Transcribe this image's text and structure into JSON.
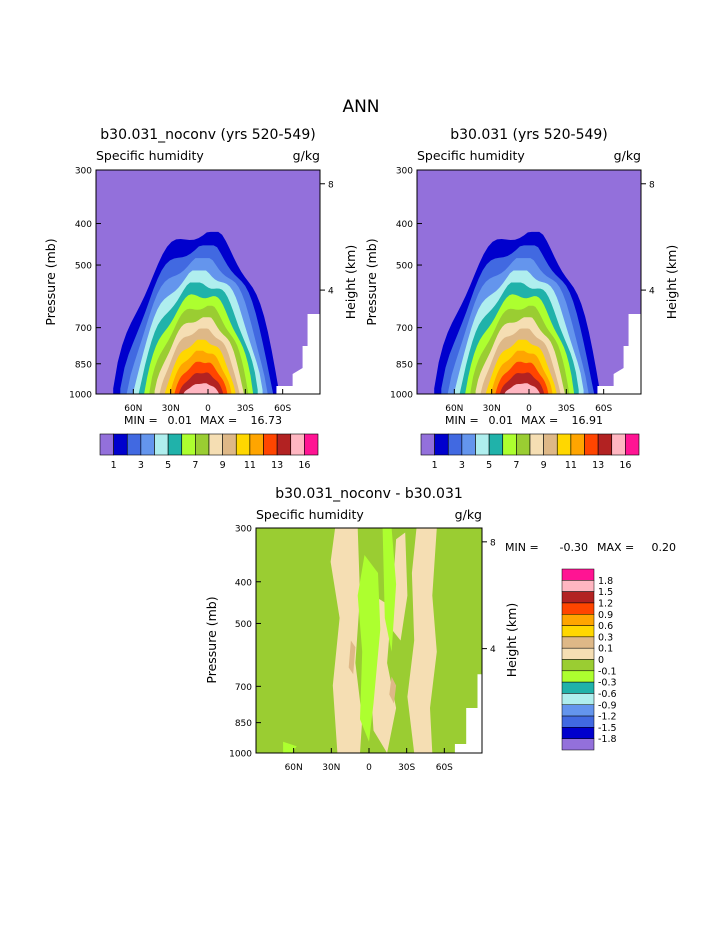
{
  "page": {
    "title": "ANN"
  },
  "colors": {
    "seq": [
      "#9370db",
      "#0000cd",
      "#4169e1",
      "#6495ed",
      "#afeeee",
      "#20b2aa",
      "#adff2f",
      "#9acd32",
      "#f5deb3",
      "#deb887",
      "#ffd700",
      "#ffa500",
      "#ff4500",
      "#b22222",
      "#ffb6c1",
      "#ff1493"
    ],
    "diff": [
      "#9370db",
      "#0000cd",
      "#4169e1",
      "#6495ed",
      "#afeeee",
      "#20b2aa",
      "#adff2f",
      "#9acd32",
      "#f5deb3",
      "#deb887",
      "#ffd700",
      "#ffa500",
      "#ff4500",
      "#b22222",
      "#ffb6c1",
      "#ff1493"
    ]
  },
  "chart_data": [
    {
      "type": "contour",
      "id": "panel_a",
      "title": "b30.031_noconv (yrs 520-549)",
      "subtitle_left": "Specific humidity",
      "subtitle_right": "g/kg",
      "ylabel": "Pressure (mb)",
      "ylabel_right": "Height (km)",
      "xticks": [
        "60N",
        "30N",
        "0",
        "30S",
        "60S"
      ],
      "yticks": [
        "300",
        "400",
        "500",
        "700",
        "850",
        "1000"
      ],
      "yticks_right": [
        "8",
        "4"
      ],
      "stats": {
        "min_label": "MIN =",
        "min": "0.01",
        "max_label": "MAX =",
        "max": "16.73"
      },
      "colorbar_labels": [
        "1",
        "3",
        "5",
        "7",
        "9",
        "11",
        "13",
        "16"
      ],
      "peak_value": 16.73
    },
    {
      "type": "contour",
      "id": "panel_b",
      "title": "b30.031 (yrs 520-549)",
      "subtitle_left": "Specific humidity",
      "subtitle_right": "g/kg",
      "ylabel": "Pressure (mb)",
      "ylabel_right": "Height (km)",
      "xticks": [
        "60N",
        "30N",
        "0",
        "30S",
        "60S"
      ],
      "yticks": [
        "300",
        "400",
        "500",
        "700",
        "850",
        "1000"
      ],
      "yticks_right": [
        "8",
        "4"
      ],
      "stats": {
        "min_label": "MIN =",
        "min": "0.01",
        "max_label": "MAX =",
        "max": "16.91"
      },
      "colorbar_labels": [
        "1",
        "3",
        "5",
        "7",
        "9",
        "11",
        "13",
        "16"
      ],
      "peak_value": 16.91
    },
    {
      "type": "contour",
      "id": "panel_diff",
      "title": "b30.031_noconv - b30.031",
      "subtitle_left": "Specific humidity",
      "subtitle_right": "g/kg",
      "ylabel": "Pressure (mb)",
      "ylabel_right": "Height (km)",
      "xticks": [
        "60N",
        "30N",
        "0",
        "30S",
        "60S"
      ],
      "yticks": [
        "300",
        "400",
        "500",
        "700",
        "850",
        "1000"
      ],
      "yticks_right": [
        "8",
        "4"
      ],
      "stats": {
        "min_label": "MIN =",
        "min": "-0.30",
        "max_label": "MAX =",
        "max": "0.20"
      },
      "colorbar_labels": [
        "1.8",
        "1.5",
        "1.2",
        "0.9",
        "0.6",
        "0.3",
        "0.1",
        "0",
        "-0.1",
        "-0.3",
        "-0.6",
        "-0.9",
        "-1.2",
        "-1.5",
        "-1.8"
      ]
    }
  ]
}
